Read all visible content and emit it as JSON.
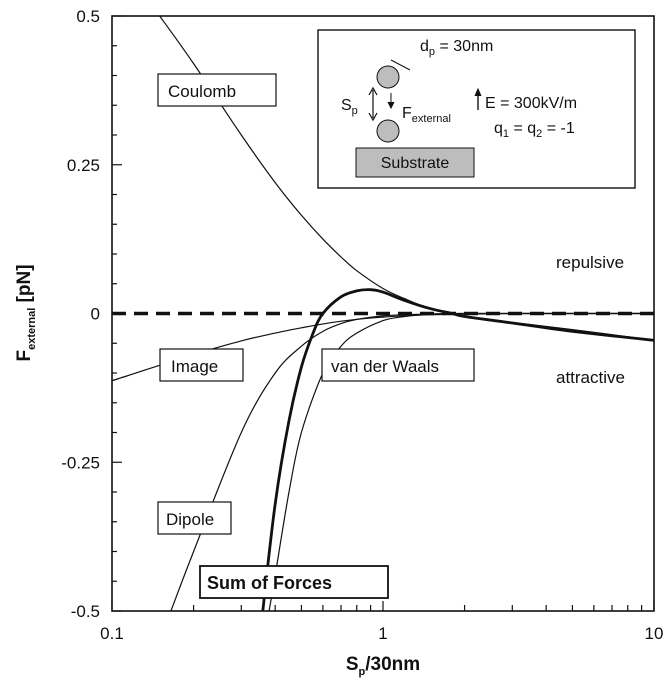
{
  "chart_data": {
    "type": "line",
    "x_scale": "log",
    "xlim": [
      0.1,
      10
    ],
    "ylim": [
      -0.5,
      0.5
    ],
    "xticks": [
      "0.1",
      "1",
      "10"
    ],
    "yticks": [
      "0.5",
      "0.25",
      "0",
      "-0.25",
      "-0.5"
    ],
    "xlabel": {
      "main": "S",
      "sub": "p",
      "rest": "/30nm"
    },
    "ylabel": {
      "main": "F",
      "sub": "external",
      "rest": " [pN]"
    },
    "region_labels": {
      "upper": "repulsive",
      "lower": "attractive"
    },
    "series": [
      {
        "name": "Coulomb",
        "x": [
          0.15,
          0.2,
          0.3,
          0.4,
          0.5,
          0.6,
          0.7,
          0.8,
          1.0,
          1.2,
          1.5,
          2,
          3,
          5,
          10
        ],
        "y": [
          0.5,
          0.42,
          0.3,
          0.22,
          0.165,
          0.125,
          0.095,
          0.072,
          0.042,
          0.025,
          0.008,
          -0.004,
          -0.015,
          -0.027,
          -0.045
        ]
      },
      {
        "name": "Image",
        "x": [
          0.1,
          0.2,
          0.3,
          0.4,
          0.5,
          0.7,
          1.0,
          1.5,
          2,
          3,
          5,
          10
        ],
        "y": [
          -0.113,
          -0.069,
          -0.046,
          -0.033,
          -0.024,
          -0.013,
          -0.006,
          -0.002,
          -0.001,
          0,
          0,
          0
        ]
      },
      {
        "name": "Dipole",
        "x": [
          0.165,
          0.2,
          0.3,
          0.4,
          0.5,
          0.6,
          0.7,
          0.8,
          1.0,
          1.2,
          1.5,
          2,
          3,
          10
        ],
        "y": [
          -0.5,
          -0.4,
          -0.2,
          -0.1,
          -0.055,
          -0.03,
          -0.017,
          -0.01,
          -0.004,
          -0.002,
          -0.001,
          0,
          0,
          0
        ]
      },
      {
        "name": "van der Waals",
        "x": [
          0.38,
          0.4,
          0.45,
          0.5,
          0.6,
          0.7,
          0.8,
          1.0,
          1.2,
          1.5,
          2,
          3,
          10
        ],
        "y": [
          -0.5,
          -0.44,
          -0.3,
          -0.2,
          -0.1,
          -0.055,
          -0.033,
          -0.012,
          -0.005,
          -0.001,
          0,
          0,
          0
        ]
      },
      {
        "name": "Sum of Forces",
        "x": [
          0.36,
          0.4,
          0.45,
          0.5,
          0.55,
          0.6,
          0.7,
          0.8,
          0.9,
          1.0,
          1.2,
          1.5,
          1.8,
          2,
          3,
          5,
          10
        ],
        "y": [
          -0.5,
          -0.32,
          -0.18,
          -0.09,
          -0.035,
          0.0,
          0.028,
          0.038,
          0.04,
          0.036,
          0.022,
          0.008,
          0.0,
          -0.005,
          -0.016,
          -0.03,
          -0.045
        ]
      }
    ],
    "zero_line": {
      "y": 0,
      "style": "dashed"
    }
  },
  "labels": {
    "coulomb": "Coulomb",
    "image": "Image",
    "vdw": "van der Waals",
    "dipole": "Dipole",
    "sum": "Sum of Forces"
  },
  "inset": {
    "dp_main": "d",
    "dp_sub": "p",
    "dp_rest": " = 30nm",
    "sp_main": "S",
    "sp_sub": "p",
    "fext_main": "F",
    "fext_sub": "external",
    "efield": "E = 300kV/m",
    "charge_main": "q",
    "charge_sub1": "1",
    "charge_mid": " = q",
    "charge_sub2": "2",
    "charge_rest": " = -1",
    "substrate": "Substrate"
  }
}
